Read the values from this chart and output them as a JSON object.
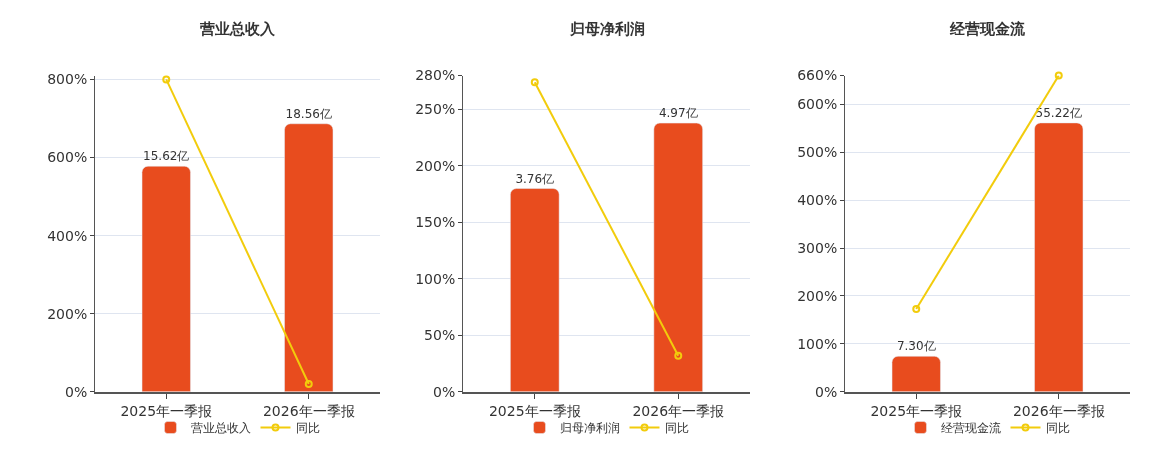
{
  "chart_data": [
    {
      "type": "bar",
      "title": "营业总收入",
      "categories": [
        "2025年一季报",
        "2026年一季报"
      ],
      "ylim": [
        0,
        810
      ],
      "yticks": [
        {
          "value": 0,
          "label": "0%"
        },
        {
          "value": 200,
          "label": "200%"
        },
        {
          "value": 400,
          "label": "400%"
        },
        {
          "value": 600,
          "label": "600%"
        },
        {
          "value": 800,
          "label": "800%"
        }
      ],
      "y2lim": [
        0,
        21.9
      ],
      "grid": "y",
      "legend": "bottom",
      "series": [
        {
          "name": "营业总收入",
          "axis": "y2",
          "color": "#e84c1e",
          "values": [
            15.62,
            18.56
          ],
          "value_labels": [
            "15.62亿",
            "18.56亿"
          ]
        },
        {
          "name": "同比",
          "type": "line",
          "color": "#f2cc0c",
          "marker": "circle",
          "values": [
            800,
            20
          ]
        }
      ]
    },
    {
      "type": "bar",
      "title": "归母净利润",
      "categories": [
        "2025年一季报",
        "2026年一季报"
      ],
      "ylim": [
        0,
        280
      ],
      "yticks": [
        {
          "value": 0,
          "label": "0%"
        },
        {
          "value": 50,
          "label": "50%"
        },
        {
          "value": 100,
          "label": "100%"
        },
        {
          "value": 150,
          "label": "150%"
        },
        {
          "value": 200,
          "label": "200%"
        },
        {
          "value": 250,
          "label": "250%"
        },
        {
          "value": 280,
          "label": "280%"
        }
      ],
      "y2lim": [
        0,
        5.85
      ],
      "grid": "y",
      "legend": "bottom",
      "series": [
        {
          "name": "归母净利润",
          "axis": "y2",
          "color": "#e84c1e",
          "values": [
            3.76,
            4.97
          ],
          "value_labels": [
            "3.76亿",
            "4.97亿"
          ]
        },
        {
          "name": "同比",
          "type": "line",
          "color": "#f2cc0c",
          "marker": "circle",
          "values": [
            274,
            32
          ]
        }
      ]
    },
    {
      "type": "bar",
      "title": "经营现金流",
      "categories": [
        "2025年一季报",
        "2026年一季报"
      ],
      "ylim": [
        0,
        660
      ],
      "yticks": [
        {
          "value": 0,
          "label": "0%"
        },
        {
          "value": 100,
          "label": "100%"
        },
        {
          "value": 200,
          "label": "200%"
        },
        {
          "value": 300,
          "label": "300%"
        },
        {
          "value": 400,
          "label": "400%"
        },
        {
          "value": 500,
          "label": "500%"
        },
        {
          "value": 600,
          "label": "600%"
        },
        {
          "value": 660,
          "label": "660%"
        }
      ],
      "y2lim": [
        0,
        64.95
      ],
      "grid": "y",
      "legend": "bottom",
      "series": [
        {
          "name": "经营现金流",
          "axis": "y2",
          "color": "#e84c1e",
          "values": [
            7.3,
            55.22
          ],
          "value_labels": [
            "7.30亿",
            "55.22亿"
          ]
        },
        {
          "name": "同比",
          "type": "line",
          "color": "#f2cc0c",
          "marker": "circle",
          "values": [
            173,
            660
          ]
        }
      ]
    }
  ]
}
